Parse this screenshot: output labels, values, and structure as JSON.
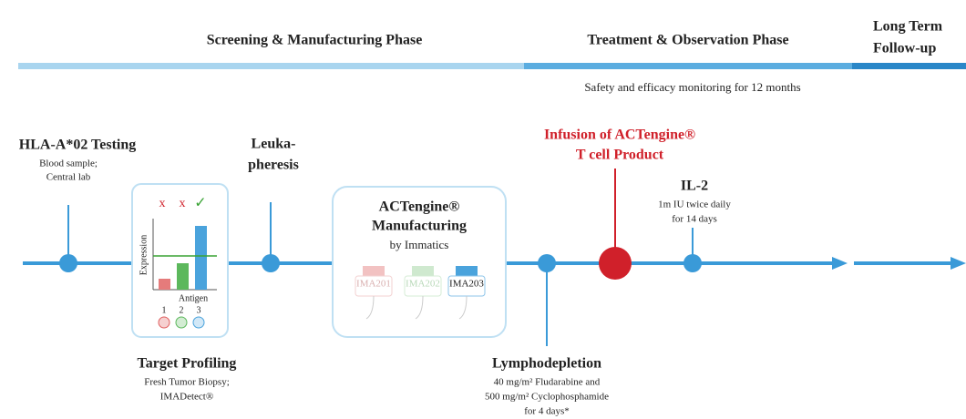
{
  "phases": [
    {
      "label": "Screening & Manufacturing Phase"
    },
    {
      "label": "Treatment & Observation Phase"
    },
    {
      "lines": [
        "Long Term",
        "Follow-up"
      ]
    }
  ],
  "monitoring": "Safety and efficacy monitoring for 12 months",
  "hla": {
    "title": "HLA-A*02 Testing",
    "details": [
      "Blood sample;",
      "Central lab"
    ]
  },
  "leukapheresis": {
    "lines": [
      "Leuka-",
      "pheresis"
    ]
  },
  "target_profiling": {
    "title": "Target Profiling",
    "details": [
      "Fresh Tumor Biopsy;",
      "IMADetect®"
    ],
    "inset": {
      "verdicts": [
        "x",
        "x",
        "✓"
      ],
      "y_label": "Expression",
      "x_label": "Antigen",
      "antigens": [
        "1",
        "2",
        "3"
      ]
    }
  },
  "manufacturing": {
    "lines": [
      "ACTengine®",
      "Manufacturing"
    ],
    "subtitle": "by Immatics",
    "products": [
      "IMA201",
      "IMA202",
      "IMA203"
    ]
  },
  "infusion": {
    "lines": [
      "Infusion of ACTengine®",
      "T cell Product"
    ]
  },
  "il2": {
    "title": "IL-2",
    "details": [
      "1m IU twice daily",
      "for 14 days"
    ]
  },
  "lymphodepletion": {
    "title": "Lymphodepletion",
    "details": [
      "40 mg/m² Fludarabine and",
      "500 mg/m² Cyclophosphamide",
      "for 4 days*"
    ]
  }
}
